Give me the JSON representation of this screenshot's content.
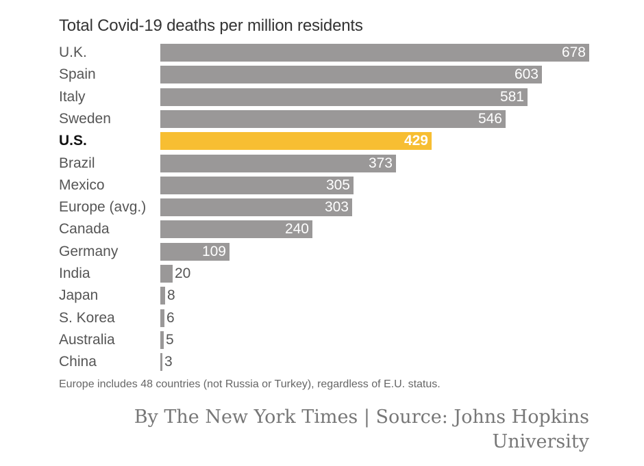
{
  "chart_data": {
    "type": "bar",
    "orientation": "horizontal",
    "title": "Total Covid-19 deaths per million residents",
    "categories": [
      "U.K.",
      "Spain",
      "Italy",
      "Sweden",
      "U.S.",
      "Brazil",
      "Mexico",
      "Europe (avg.)",
      "Canada",
      "Germany",
      "India",
      "Japan",
      "S. Korea",
      "Australia",
      "China"
    ],
    "values": [
      678,
      603,
      581,
      546,
      429,
      373,
      305,
      303,
      240,
      109,
      20,
      8,
      6,
      5,
      3
    ],
    "highlight": "U.S.",
    "xlim": [
      0,
      678
    ],
    "xlabel": "",
    "ylabel": "",
    "grid": false
  },
  "colors": {
    "bar": "#9a9898",
    "highlight": "#f7be32"
  },
  "footnote": "Europe includes 48 countries (not Russia or Turkey), regardless of E.U. status.",
  "credit": "By The New York Times | Source: Johns Hopkins University"
}
